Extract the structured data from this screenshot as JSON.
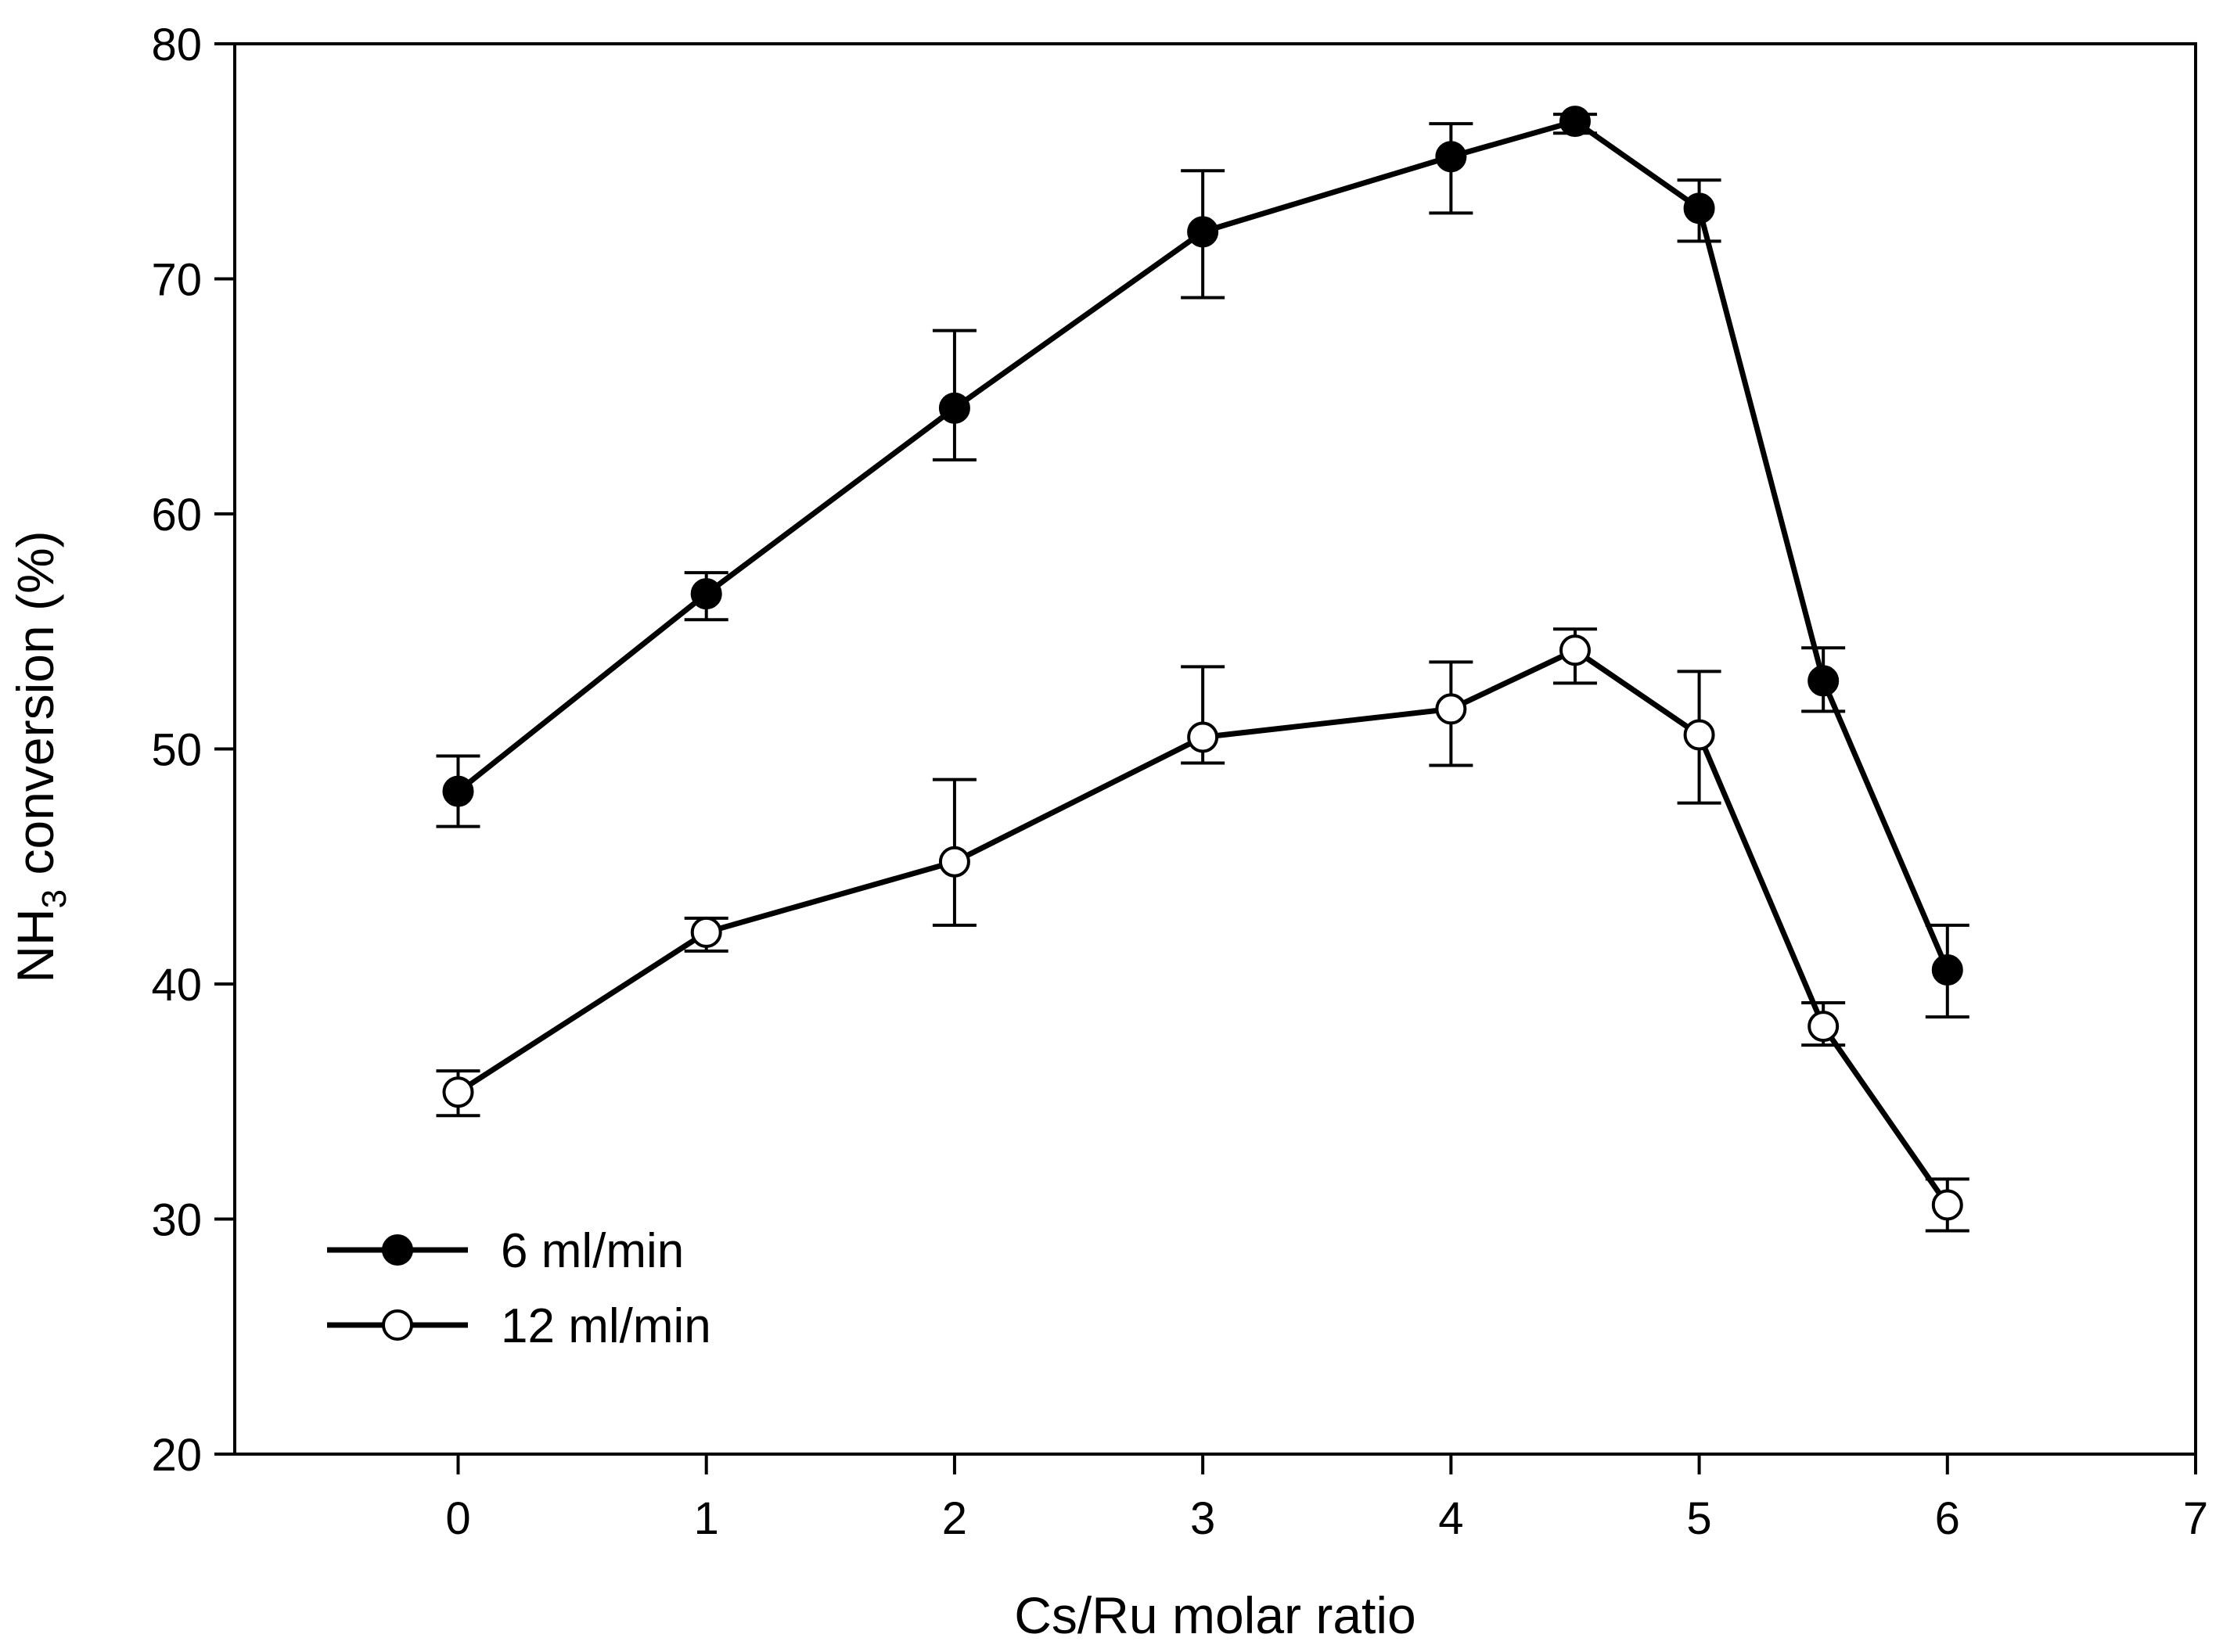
{
  "chart_data": {
    "type": "line",
    "title": "",
    "xlabel": "Cs/Ru molar ratio",
    "ylabel": {
      "prefix": "NH",
      "subscript": "3",
      "suffix": " conversion (%)"
    },
    "xlim": [
      -0.9,
      7
    ],
    "ylim": [
      20,
      80
    ],
    "xticks": [
      0,
      1,
      2,
      3,
      4,
      5,
      6,
      7
    ],
    "yticks": [
      20,
      30,
      40,
      50,
      60,
      70,
      80
    ],
    "grid": false,
    "legend_position": "bottom-left",
    "series": [
      {
        "name": "6 ml/min",
        "marker": "filled-circle",
        "x": [
          0,
          1,
          2,
          3,
          4,
          4.5,
          5,
          5.5,
          6
        ],
        "y": [
          48.2,
          56.6,
          64.5,
          72.0,
          75.2,
          76.7,
          73.0,
          52.9,
          40.6
        ],
        "err_low": [
          46.7,
          55.5,
          62.3,
          69.2,
          72.8,
          76.2,
          71.6,
          51.6,
          38.6
        ],
        "err_high": [
          49.7,
          57.5,
          67.8,
          74.6,
          76.6,
          77.0,
          74.2,
          54.3,
          42.5
        ]
      },
      {
        "name": "12 ml/min",
        "marker": "open-circle",
        "x": [
          0,
          1,
          2,
          3,
          4,
          4.5,
          5,
          5.5,
          6
        ],
        "y": [
          35.4,
          42.2,
          45.2,
          50.5,
          51.7,
          54.2,
          50.6,
          38.2,
          30.6
        ],
        "err_low": [
          34.4,
          41.4,
          42.5,
          49.4,
          49.3,
          52.8,
          47.7,
          37.4,
          29.5
        ],
        "err_high": [
          36.3,
          42.8,
          48.7,
          53.5,
          53.7,
          55.1,
          53.3,
          39.2,
          31.7
        ]
      }
    ]
  }
}
